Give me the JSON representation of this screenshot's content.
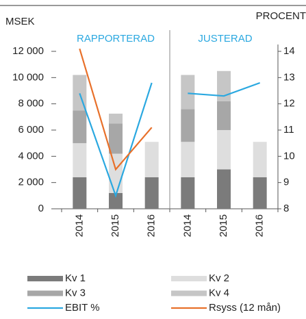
{
  "chart_data": {
    "type": "bar",
    "ylabel": "MSEK",
    "y2label": "PROCENT",
    "panels": [
      {
        "title": "RAPPORTERAD"
      },
      {
        "title": "JUSTERAD"
      }
    ],
    "categories": [
      "2014",
      "2015",
      "2016",
      "2014",
      "2015",
      "2016"
    ],
    "ylim": [
      0,
      12000
    ],
    "yticks": [
      0,
      {
        "value": 2000,
        "label": "2 000"
      },
      {
        "value": 4000,
        "label": "4 000"
      },
      {
        "value": 6000,
        "label": "6 000"
      },
      {
        "value": 8000,
        "label": "8 000"
      },
      {
        "value": 10000,
        "label": "10 000"
      },
      {
        "value": 12000,
        "label": "12 000"
      }
    ],
    "y2lim": [
      8,
      14
    ],
    "y2ticks": [
      8,
      9,
      10,
      11,
      12,
      13,
      14
    ],
    "series": [
      {
        "name": "Kv 1",
        "type": "bar",
        "color": "#7b7b7b",
        "values": [
          2400,
          1200,
          2400,
          2400,
          3000,
          2400
        ]
      },
      {
        "name": "Kv 2",
        "type": "bar",
        "color": "#dedede",
        "values": [
          2600,
          3000,
          2700,
          2700,
          3000,
          2700
        ]
      },
      {
        "name": "Kv 3",
        "type": "bar",
        "color": "#a7a7a7",
        "values": [
          2500,
          2300,
          null,
          2500,
          2200,
          null
        ]
      },
      {
        "name": "Kv 4",
        "type": "bar",
        "color": "#c6c6c6",
        "values": [
          2700,
          750,
          null,
          2600,
          2300,
          null
        ]
      },
      {
        "name": "EBIT %",
        "type": "line",
        "axis": "y2",
        "color": "#2aa8e0",
        "values": [
          12.4,
          8.5,
          12.8,
          12.4,
          12.3,
          12.8
        ]
      },
      {
        "name": "Rsyss (12 mån)",
        "type": "line",
        "axis": "y2",
        "color": "#e8702a",
        "values": [
          14.1,
          9.5,
          11.1,
          null,
          null,
          null
        ]
      }
    ]
  }
}
